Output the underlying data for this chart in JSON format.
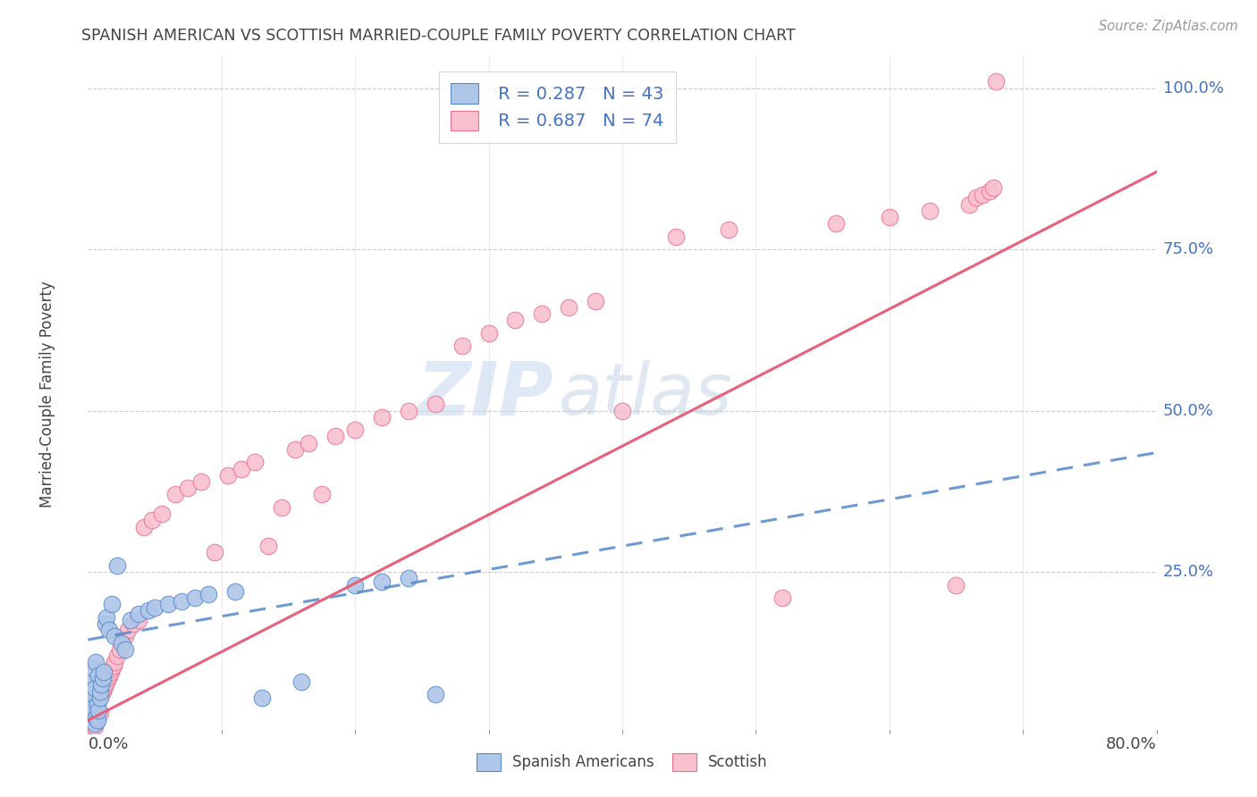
{
  "title": "SPANISH AMERICAN VS SCOTTISH MARRIED-COUPLE FAMILY POVERTY CORRELATION CHART",
  "source": "Source: ZipAtlas.com",
  "ylabel": "Married-Couple Family Poverty",
  "xlim": [
    0.0,
    0.8
  ],
  "ylim": [
    0.0,
    1.05
  ],
  "legend_r1": "R = 0.287",
  "legend_n1": "N = 43",
  "legend_r2": "R = 0.687",
  "legend_n2": "N = 74",
  "watermark_zip": "ZIP",
  "watermark_atlas": "atlas",
  "color_blue_fill": "#AEC6E8",
  "color_blue_edge": "#5588CC",
  "color_pink_fill": "#F9C0D0",
  "color_pink_edge": "#E87090",
  "color_blue_line": "#5588CC",
  "color_pink_line": "#E8607A",
  "color_text_blue": "#4472C4",
  "color_grid": "#CCCCCC",
  "color_title": "#444444",
  "sp_line_x0": 0.0,
  "sp_line_y0": 0.145,
  "sp_line_x1": 0.8,
  "sp_line_y1": 0.435,
  "sc_line_x0": 0.0,
  "sc_line_y0": 0.02,
  "sc_line_x1": 0.8,
  "sc_line_y1": 0.87,
  "sp_x": [
    0.001,
    0.002,
    0.002,
    0.003,
    0.003,
    0.004,
    0.004,
    0.005,
    0.005,
    0.006,
    0.006,
    0.007,
    0.007,
    0.008,
    0.008,
    0.009,
    0.009,
    0.01,
    0.011,
    0.012,
    0.013,
    0.014,
    0.016,
    0.018,
    0.02,
    0.022,
    0.025,
    0.028,
    0.032,
    0.038,
    0.045,
    0.05,
    0.06,
    0.07,
    0.08,
    0.09,
    0.11,
    0.13,
    0.16,
    0.2,
    0.22,
    0.24,
    0.26
  ],
  "sp_y": [
    0.05,
    0.08,
    0.02,
    0.06,
    0.03,
    0.04,
    0.1,
    0.015,
    0.07,
    0.025,
    0.11,
    0.02,
    0.045,
    0.09,
    0.035,
    0.055,
    0.065,
    0.075,
    0.085,
    0.095,
    0.17,
    0.18,
    0.16,
    0.2,
    0.15,
    0.26,
    0.14,
    0.13,
    0.175,
    0.185,
    0.19,
    0.195,
    0.2,
    0.205,
    0.21,
    0.215,
    0.22,
    0.055,
    0.08,
    0.23,
    0.235,
    0.24,
    0.06
  ],
  "sc_x": [
    0.001,
    0.002,
    0.002,
    0.003,
    0.003,
    0.004,
    0.004,
    0.005,
    0.005,
    0.006,
    0.006,
    0.007,
    0.007,
    0.008,
    0.008,
    0.009,
    0.01,
    0.011,
    0.012,
    0.013,
    0.014,
    0.015,
    0.016,
    0.017,
    0.018,
    0.019,
    0.02,
    0.022,
    0.024,
    0.026,
    0.028,
    0.03,
    0.034,
    0.038,
    0.042,
    0.048,
    0.055,
    0.065,
    0.075,
    0.085,
    0.095,
    0.105,
    0.115,
    0.125,
    0.135,
    0.145,
    0.155,
    0.165,
    0.175,
    0.185,
    0.2,
    0.22,
    0.24,
    0.26,
    0.28,
    0.3,
    0.32,
    0.34,
    0.36,
    0.38,
    0.4,
    0.44,
    0.48,
    0.52,
    0.56,
    0.6,
    0.63,
    0.65,
    0.66,
    0.665,
    0.67,
    0.675,
    0.678,
    0.68
  ],
  "sc_y": [
    0.005,
    0.008,
    0.02,
    0.012,
    0.025,
    0.015,
    0.035,
    0.01,
    0.04,
    0.018,
    0.045,
    0.022,
    0.05,
    0.028,
    0.055,
    0.032,
    0.06,
    0.065,
    0.07,
    0.075,
    0.08,
    0.085,
    0.09,
    0.095,
    0.1,
    0.105,
    0.11,
    0.12,
    0.13,
    0.14,
    0.15,
    0.16,
    0.17,
    0.175,
    0.32,
    0.33,
    0.34,
    0.37,
    0.38,
    0.39,
    0.28,
    0.4,
    0.41,
    0.42,
    0.29,
    0.35,
    0.44,
    0.45,
    0.37,
    0.46,
    0.47,
    0.49,
    0.5,
    0.51,
    0.6,
    0.62,
    0.64,
    0.65,
    0.66,
    0.67,
    0.5,
    0.77,
    0.78,
    0.21,
    0.79,
    0.8,
    0.81,
    0.23,
    0.82,
    0.83,
    0.835,
    0.84,
    0.845,
    1.01
  ]
}
